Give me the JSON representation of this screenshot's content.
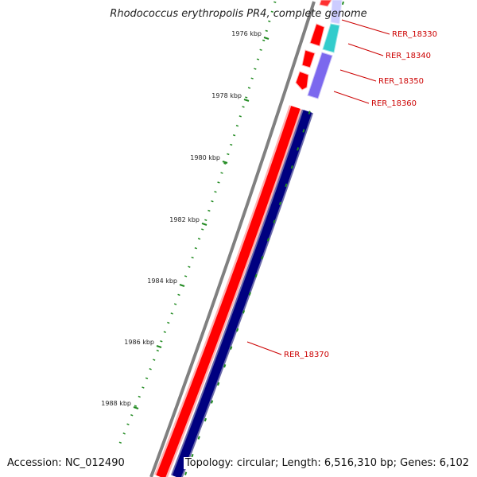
{
  "title": "Rhodococcus erythropolis PR4, complete genome",
  "accession_text": "Accession: NC_012490",
  "info_text": "Topology: circular; Length: 6,516,310 bp; Genes: 6,102",
  "colors": {
    "backbone": "#808080",
    "forward_cds": "#ff0000",
    "reverse_cds": "#000080",
    "gene_cyan": "#33cccc",
    "gene_purple": "#7b68ee",
    "tick": "#228b22",
    "label": "#cc0000"
  },
  "ticks": [
    {
      "label": "1976 kbp"
    },
    {
      "label": "1978 kbp"
    },
    {
      "label": "1980 kbp"
    },
    {
      "label": "1982 kbp"
    },
    {
      "label": "1984 kbp"
    },
    {
      "label": "1986 kbp"
    },
    {
      "label": "1988 kbp"
    }
  ],
  "genes": [
    {
      "name": "RER_18330"
    },
    {
      "name": "RER_18340"
    },
    {
      "name": "RER_18350"
    },
    {
      "name": "RER_18360"
    },
    {
      "name": "RER_18370"
    }
  ]
}
